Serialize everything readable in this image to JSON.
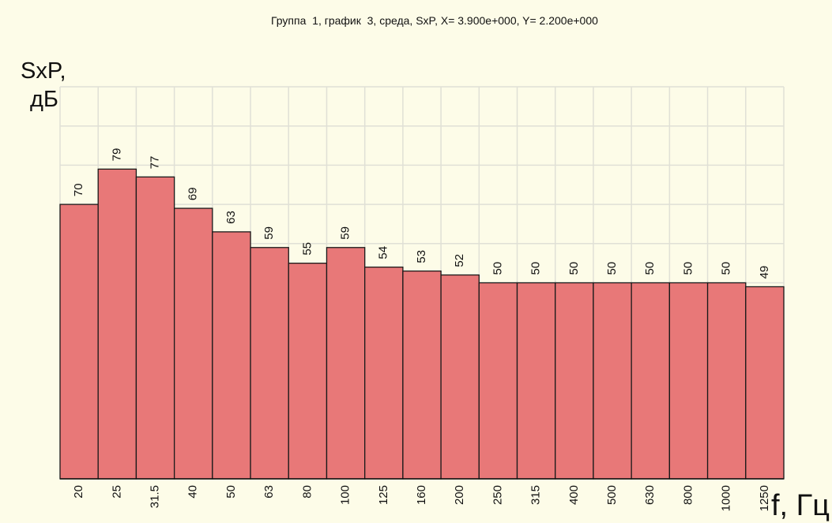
{
  "chart_data": {
    "type": "bar",
    "title": "Группа  1, график  3, среда, SxP, X= 3.900e+000, Y= 2.200e+000",
    "ylabel_line1": "SxP,",
    "ylabel_line2": "дБ",
    "xlabel": "f, Гц",
    "categories": [
      "20",
      "25",
      "31.5",
      "40",
      "50",
      "63",
      "80",
      "100",
      "125",
      "160",
      "200",
      "250",
      "315",
      "400",
      "500",
      "630",
      "800",
      "1000",
      "1250"
    ],
    "values": [
      70,
      79,
      77,
      69,
      63,
      59,
      55,
      59,
      54,
      53,
      52,
      50,
      50,
      50,
      50,
      50,
      50,
      50,
      49
    ],
    "value_labels": [
      "70",
      "79",
      "77",
      "69",
      "63",
      "59",
      "55",
      "59",
      "54",
      "53",
      "52",
      "50",
      "50",
      "50",
      "50",
      "50",
      "50",
      "50",
      "49"
    ],
    "ylim": [
      0,
      100
    ],
    "grid": true,
    "bar_color": "#e87878",
    "bar_edge_color": "#1a1a1a",
    "grid_color": "#e0e0d6",
    "background_color": "#fdfce8"
  }
}
